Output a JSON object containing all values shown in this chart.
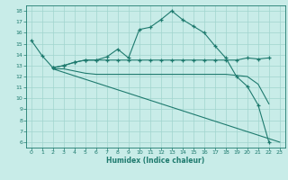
{
  "xlabel": "Humidex (Indice chaleur)",
  "xlim": [
    -0.5,
    23.5
  ],
  "ylim": [
    5.5,
    18.5
  ],
  "xticks": [
    0,
    1,
    2,
    3,
    4,
    5,
    6,
    7,
    8,
    9,
    10,
    11,
    12,
    13,
    14,
    15,
    16,
    17,
    18,
    19,
    20,
    21,
    22,
    23
  ],
  "yticks": [
    6,
    7,
    8,
    9,
    10,
    11,
    12,
    13,
    14,
    15,
    16,
    17,
    18
  ],
  "bg_color": "#c8ece8",
  "line_color": "#1e7a6e",
  "grid_color": "#a0d4ce",
  "lines": [
    {
      "x": [
        0,
        1,
        2,
        3,
        4,
        5,
        6,
        7,
        8,
        9,
        10,
        11,
        12,
        13,
        14,
        15,
        16,
        17,
        18,
        19,
        20,
        21,
        22
      ],
      "y": [
        15.3,
        13.9,
        12.8,
        13.0,
        13.3,
        13.5,
        13.5,
        13.8,
        14.5,
        13.7,
        16.3,
        16.5,
        17.2,
        18.0,
        17.2,
        16.6,
        16.0,
        14.8,
        13.7,
        12.0,
        11.1,
        9.4,
        6.0
      ],
      "marker": true
    },
    {
      "x": [
        2,
        3,
        4,
        5,
        6,
        7,
        8,
        9,
        10,
        11,
        12,
        13,
        14,
        15,
        16,
        17,
        18,
        19,
        20,
        21,
        22
      ],
      "y": [
        12.8,
        13.0,
        13.3,
        13.5,
        13.5,
        13.5,
        13.5,
        13.5,
        13.5,
        13.5,
        13.5,
        13.5,
        13.5,
        13.5,
        13.5,
        13.5,
        13.5,
        13.5,
        13.7,
        13.6,
        13.7
      ],
      "marker": true
    },
    {
      "x": [
        2,
        3,
        4,
        5,
        6,
        7,
        8,
        9,
        10,
        11,
        12,
        13,
        14,
        15,
        16,
        17,
        18,
        19,
        20,
        21,
        22
      ],
      "y": [
        12.7,
        12.7,
        12.5,
        12.3,
        12.2,
        12.2,
        12.2,
        12.2,
        12.2,
        12.2,
        12.2,
        12.2,
        12.2,
        12.2,
        12.2,
        12.2,
        12.2,
        12.1,
        12.0,
        11.3,
        9.5
      ],
      "marker": false
    },
    {
      "x": [
        2,
        23
      ],
      "y": [
        12.7,
        6.0
      ],
      "marker": false
    }
  ]
}
